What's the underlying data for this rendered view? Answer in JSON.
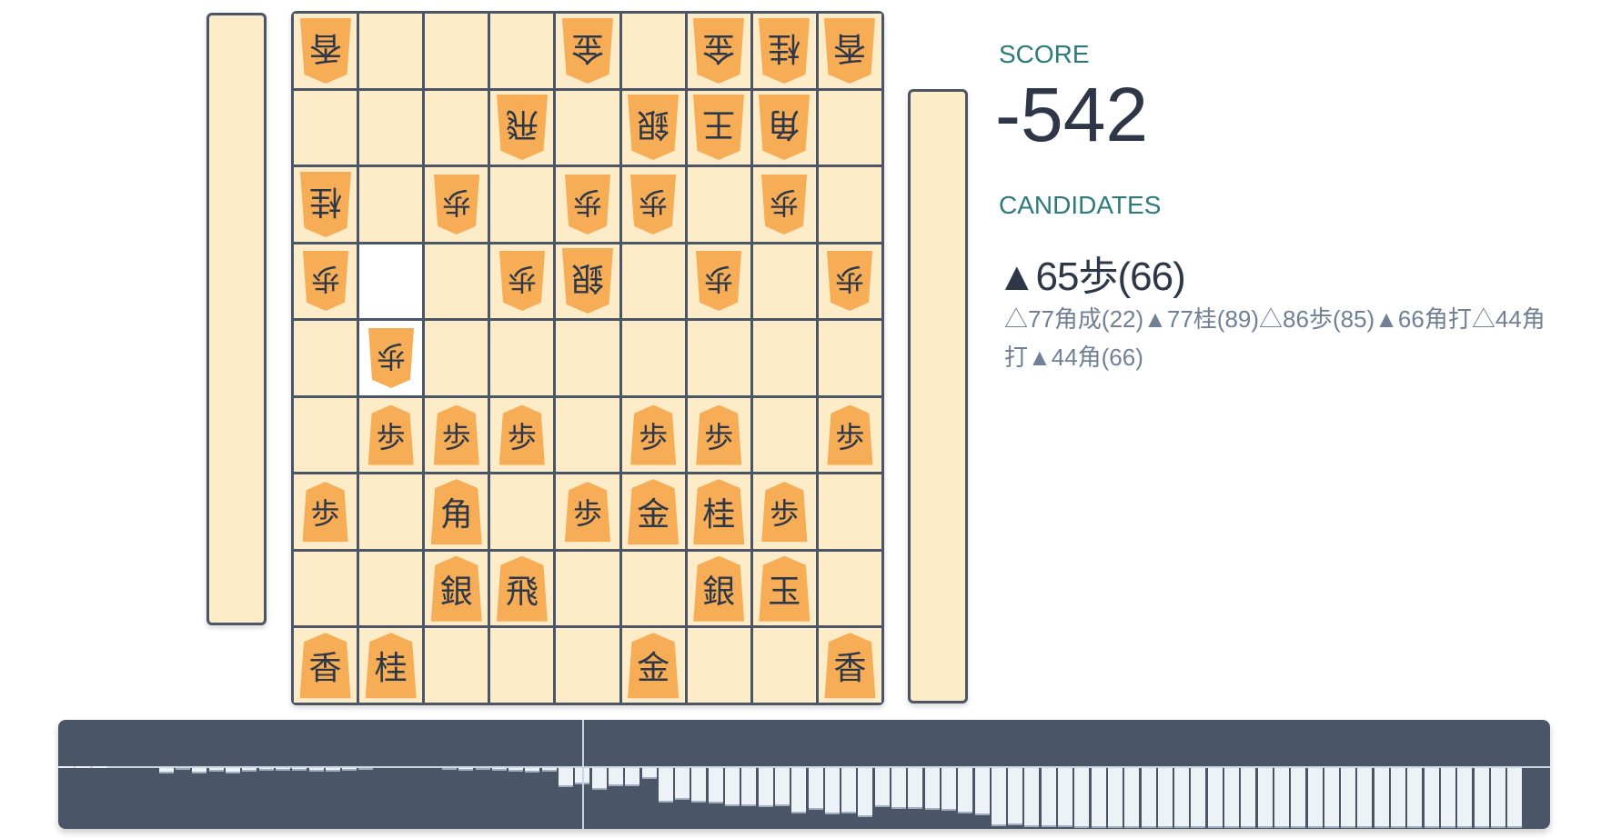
{
  "board": {
    "rows": [
      [
        {
          "p": "香",
          "g": true
        },
        null,
        null,
        null,
        {
          "p": "金",
          "g": true
        },
        null,
        {
          "p": "金",
          "g": true
        },
        {
          "p": "桂",
          "g": true
        },
        {
          "p": "香",
          "g": true
        }
      ],
      [
        null,
        null,
        null,
        {
          "p": "飛",
          "g": true
        },
        null,
        {
          "p": "銀",
          "g": true
        },
        {
          "p": "王",
          "g": true
        },
        {
          "p": "角",
          "g": true
        },
        null
      ],
      [
        {
          "p": "桂",
          "g": true
        },
        null,
        {
          "p": "歩",
          "g": true
        },
        null,
        {
          "p": "歩",
          "g": true
        },
        {
          "p": "歩",
          "g": true
        },
        null,
        {
          "p": "歩",
          "g": true
        },
        null
      ],
      [
        {
          "p": "歩",
          "g": true
        },
        null,
        null,
        {
          "p": "歩",
          "g": true
        },
        {
          "p": "銀",
          "g": true
        },
        null,
        {
          "p": "歩",
          "g": true
        },
        null,
        {
          "p": "歩",
          "g": true
        }
      ],
      [
        null,
        {
          "p": "歩",
          "g": true
        },
        null,
        null,
        null,
        null,
        null,
        null,
        null
      ],
      [
        null,
        {
          "p": "歩"
        },
        {
          "p": "歩"
        },
        {
          "p": "歩"
        },
        null,
        {
          "p": "歩"
        },
        {
          "p": "歩"
        },
        null,
        {
          "p": "歩"
        }
      ],
      [
        {
          "p": "歩"
        },
        null,
        {
          "p": "角"
        },
        null,
        {
          "p": "歩"
        },
        {
          "p": "金"
        },
        {
          "p": "桂"
        },
        {
          "p": "歩"
        },
        null
      ],
      [
        null,
        null,
        {
          "p": "銀"
        },
        {
          "p": "飛"
        },
        null,
        null,
        {
          "p": "銀"
        },
        {
          "p": "玉"
        },
        null
      ],
      [
        {
          "p": "香"
        },
        {
          "p": "桂"
        },
        null,
        null,
        null,
        {
          "p": "金"
        },
        null,
        null,
        {
          "p": "香"
        }
      ]
    ],
    "highlighted_squares": [
      [
        3,
        1
      ],
      [
        4,
        1
      ]
    ]
  },
  "info": {
    "score_label": "SCORE",
    "score": "-542",
    "candidates_label": "CANDIDATES",
    "best_move": "▲65歩(66)",
    "other_moves": "△77角成(22)▲77桂(89)△86歩(85)▲66角打△44角打▲44角(66)"
  },
  "chart_data": {
    "type": "bar",
    "ylim": [
      -2000,
      2000
    ],
    "current_index": 31,
    "values": [
      40,
      40,
      40,
      0,
      0,
      0,
      -170,
      -60,
      -190,
      -110,
      -180,
      -120,
      -80,
      -80,
      -80,
      -110,
      -110,
      -80,
      -60,
      0,
      0,
      0,
      0,
      -20,
      -90,
      -60,
      -90,
      -120,
      -160,
      -110,
      -650,
      -542,
      -730,
      -620,
      -600,
      -360,
      -1160,
      -1050,
      -1160,
      -1190,
      -1270,
      -1270,
      -1310,
      -1270,
      -1530,
      -1400,
      -1550,
      -1500,
      -1630,
      -1290,
      -1370,
      -1370,
      -1380,
      -1420,
      -1520,
      -1570,
      -1930,
      -1910,
      -1970,
      -1970,
      -1970,
      -2000,
      -2000,
      -2000,
      -2000,
      -2000,
      -2000,
      -2000,
      -2000,
      -2000,
      -2000,
      -2000,
      -2000,
      -2000,
      -2000,
      -2000,
      -2000,
      -2000,
      -2000,
      -2000,
      -2000,
      -2000,
      -2000,
      -2000,
      -2000,
      -2000,
      -2000,
      -2000
    ],
    "colors": {
      "background": "#4a5568",
      "bar": "#edf2f7",
      "zero_line": "#cbd5e0"
    }
  }
}
